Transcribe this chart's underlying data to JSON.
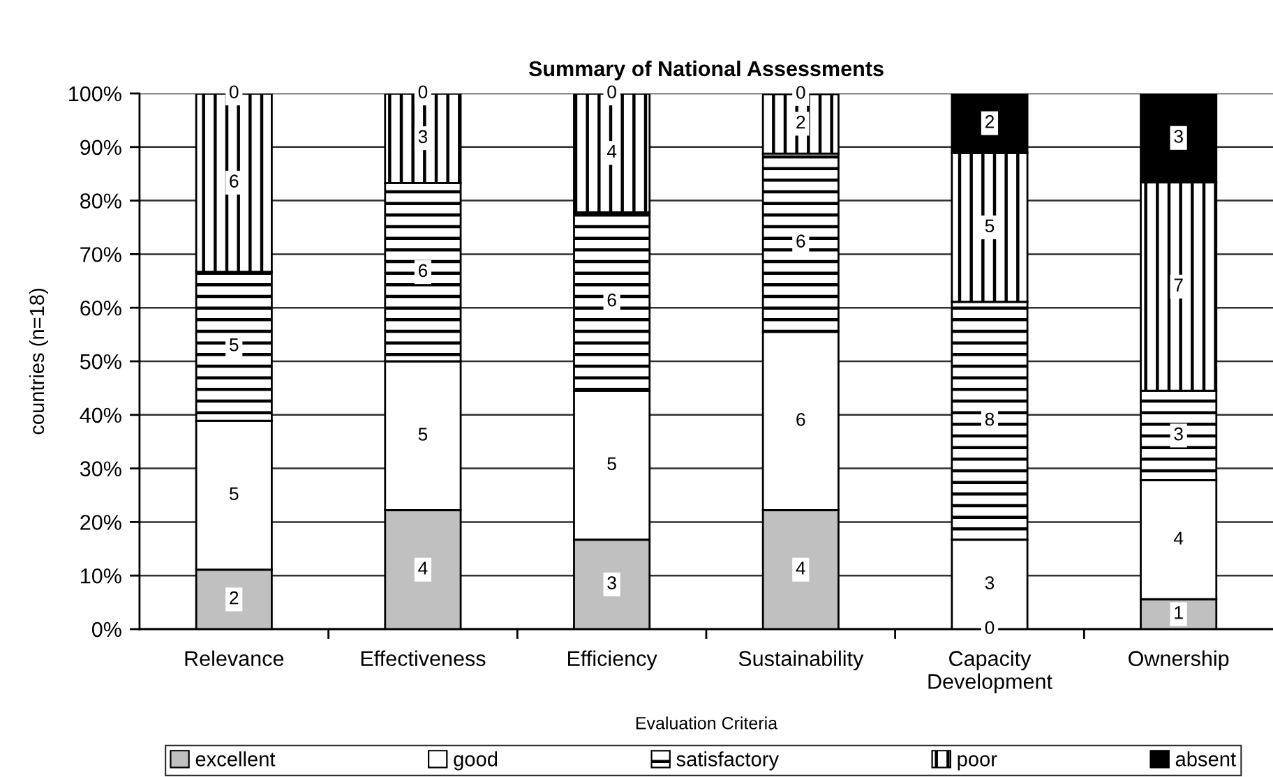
{
  "chart_data": {
    "type": "bar",
    "title": "Summary of National Assessments",
    "xlabel": "Evaluation Criteria",
    "ylabel": "countries (n=18)",
    "categories": [
      "Relevance",
      "Effectiveness",
      "Efficiency",
      "Sustainability",
      "Capacity Development",
      "Ownership"
    ],
    "series": [
      {
        "name": "excellent",
        "color": "#c0c0c0",
        "values": [
          11.1,
          22.2,
          16.7,
          22.2,
          0,
          5.6
        ]
      },
      {
        "name": "good",
        "color": "#ffffff",
        "values": [
          27.8,
          27.8,
          27.8,
          33.3,
          16.7,
          22.2
        ]
      },
      {
        "name": "satisfactory",
        "color": "#000000",
        "values": [
          27.8,
          33.3,
          33.3,
          33.3,
          44.4,
          16.7
        ]
      },
      {
        "name": "poor",
        "color": "#000000",
        "values": [
          33.3,
          16.7,
          22.2,
          11.1,
          27.8,
          38.9
        ]
      },
      {
        "name": "absent",
        "color": "#000000",
        "values": [
          0,
          0,
          0,
          0,
          11.1,
          16.6
        ]
      }
    ],
    "stacked": true,
    "grid": "y",
    "legend": "bottom",
    "ylim": [
      0,
      100
    ],
    "yticks": [
      {
        "value": 0,
        "label": "0%"
      },
      {
        "value": 10,
        "label": "10%"
      },
      {
        "value": 20,
        "label": "20%"
      },
      {
        "value": 30,
        "label": "30%"
      },
      {
        "value": 40,
        "label": "40%"
      },
      {
        "value": 50,
        "label": "50%"
      },
      {
        "value": 60,
        "label": "60%"
      },
      {
        "value": 70,
        "label": "70%"
      },
      {
        "value": 80,
        "label": "80%"
      },
      {
        "value": 90,
        "label": "90%"
      },
      {
        "value": 100,
        "label": "100%"
      }
    ],
    "annotations": [
      {
        "text": "2",
        "x": "Relevance",
        "y": 5.55
      },
      {
        "text": "5",
        "x": "Relevance",
        "y": 25.0
      },
      {
        "text": "5",
        "x": "Relevance",
        "y": 52.8
      },
      {
        "text": "6",
        "x": "Relevance",
        "y": 83.35
      },
      {
        "text": "0",
        "x": "Relevance",
        "y": 100
      },
      {
        "text": "4",
        "x": "Effectiveness",
        "y": 11.1
      },
      {
        "text": "5",
        "x": "Effectiveness",
        "y": 36.1
      },
      {
        "text": "6",
        "x": "Effectiveness",
        "y": 66.65
      },
      {
        "text": "3",
        "x": "Effectiveness",
        "y": 91.65
      },
      {
        "text": "0",
        "x": "Effectiveness",
        "y": 100
      },
      {
        "text": "3",
        "x": "Efficiency",
        "y": 8.35
      },
      {
        "text": "5",
        "x": "Efficiency",
        "y": 30.6
      },
      {
        "text": "6",
        "x": "Efficiency",
        "y": 61.15
      },
      {
        "text": "4",
        "x": "Efficiency",
        "y": 88.9
      },
      {
        "text": "0",
        "x": "Efficiency",
        "y": 100
      },
      {
        "text": "4",
        "x": "Sustainability",
        "y": 11.1
      },
      {
        "text": "6",
        "x": "Sustainability",
        "y": 38.85
      },
      {
        "text": "6",
        "x": "Sustainability",
        "y": 72.15
      },
      {
        "text": "2",
        "x": "Sustainability",
        "y": 94.35
      },
      {
        "text": "0",
        "x": "Sustainability",
        "y": 99.9
      },
      {
        "text": "0",
        "x": "Capacity Development",
        "y": 0
      },
      {
        "text": "3",
        "x": "Capacity Development",
        "y": 8.35
      },
      {
        "text": "8",
        "x": "Capacity Development",
        "y": 38.9
      },
      {
        "text": "5",
        "x": "Capacity Development",
        "y": 75.0
      },
      {
        "text": "2",
        "x": "Capacity Development",
        "y": 94.45
      },
      {
        "text": "1",
        "x": "Ownership",
        "y": 2.8
      },
      {
        "text": "4",
        "x": "Ownership",
        "y": 16.7
      },
      {
        "text": "3",
        "x": "Ownership",
        "y": 36.15
      },
      {
        "text": "7",
        "x": "Ownership",
        "y": 63.95
      },
      {
        "text": "3",
        "x": "Ownership",
        "y": 91.7
      }
    ]
  }
}
